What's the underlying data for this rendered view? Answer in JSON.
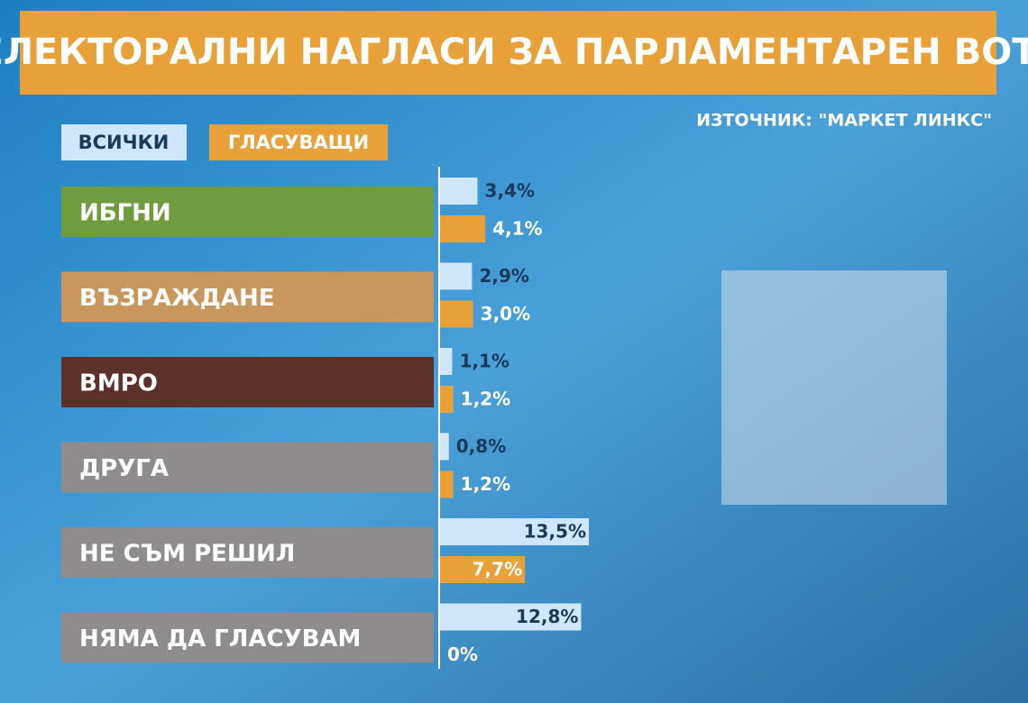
{
  "chart_data": {
    "type": "hbar",
    "title": "ЕЛЕКТОРАЛНИ НАГЛАСИ ЗА ПАРЛАМЕНТАРЕН ВОТ",
    "source": "ИЗТОЧНИК: \"МАРКЕТ ЛИНКС\"",
    "categories": [
      "ИБГНИ",
      "ВЪЗРАЖДАНЕ",
      "ВМРО",
      "ДРУГА",
      "НЕ СЪМ РЕШИЛ",
      "НЯМА ДА ГЛАСУВАМ"
    ],
    "category_colors": [
      "#6f9c3d",
      "#c9975c",
      "#5b3129",
      "#8e8c8c",
      "#8e8c8c",
      "#8e8c8c"
    ],
    "series": [
      {
        "name": "ВСИЧКИ",
        "color": "#cfe6fb",
        "values": [
          3.4,
          2.9,
          1.1,
          0.8,
          13.5,
          12.8
        ],
        "value_labels": [
          "3,4%",
          "2,9%",
          "1,1%",
          "0,8%",
          "13,5%",
          "12,8%"
        ]
      },
      {
        "name": "ГЛАСУВАЩИ",
        "color": "#e8a038",
        "values": [
          4.1,
          3.0,
          1.2,
          1.2,
          7.7,
          0
        ],
        "value_labels": [
          "4,1%",
          "3,0%",
          "1,2%",
          "1,2%",
          "7,7%",
          "0%"
        ]
      }
    ]
  }
}
